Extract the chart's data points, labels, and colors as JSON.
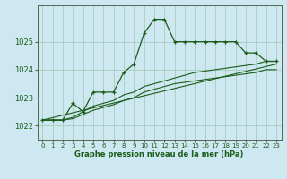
{
  "background_color": "#cde8f0",
  "grid_color": "#aaccbb",
  "line_color": "#1a5c1a",
  "xlabel": "Graphe pression niveau de la mer (hPa)",
  "xlim": [
    -0.5,
    23.5
  ],
  "ylim": [
    1021.5,
    1026.3
  ],
  "yticks": [
    1022,
    1023,
    1024,
    1025
  ],
  "xticks": [
    0,
    1,
    2,
    3,
    4,
    5,
    6,
    7,
    8,
    9,
    10,
    11,
    12,
    13,
    14,
    15,
    16,
    17,
    18,
    19,
    20,
    21,
    22,
    23
  ],
  "series": [
    {
      "x": [
        0,
        1,
        2,
        3,
        4,
        5,
        6,
        7,
        8,
        9,
        10,
        11,
        12,
        13,
        14,
        15,
        16,
        17,
        18,
        19,
        20,
        21,
        22,
        23
      ],
      "y": [
        1022.2,
        1022.2,
        1022.2,
        1022.8,
        1022.5,
        1023.2,
        1023.2,
        1023.2,
        1023.9,
        1024.2,
        1025.3,
        1025.8,
        1025.8,
        1025.0,
        1025.0,
        1025.0,
        1025.0,
        1025.0,
        1025.0,
        1025.0,
        1024.6,
        1024.6,
        1024.3,
        1024.3
      ],
      "has_markers": true
    },
    {
      "x": [
        0,
        1,
        2,
        3,
        4,
        5,
        6,
        7,
        8,
        9,
        10,
        11,
        12,
        13,
        14,
        15,
        16,
        17,
        18,
        19,
        20,
        21,
        22,
        23
      ],
      "y": [
        1022.2,
        1022.2,
        1022.2,
        1022.3,
        1022.5,
        1022.7,
        1022.8,
        1022.9,
        1023.1,
        1023.2,
        1023.4,
        1023.5,
        1023.6,
        1023.7,
        1023.8,
        1023.9,
        1023.95,
        1024.0,
        1024.05,
        1024.1,
        1024.15,
        1024.2,
        1024.3,
        1024.3
      ],
      "has_markers": false
    },
    {
      "x": [
        0,
        1,
        2,
        3,
        4,
        5,
        6,
        7,
        8,
        9,
        10,
        11,
        12,
        13,
        14,
        15,
        16,
        17,
        18,
        19,
        20,
        21,
        22,
        23
      ],
      "y": [
        1022.2,
        1022.2,
        1022.2,
        1022.25,
        1022.4,
        1022.55,
        1022.65,
        1022.75,
        1022.9,
        1023.0,
        1023.2,
        1023.3,
        1023.4,
        1023.5,
        1023.55,
        1023.6,
        1023.65,
        1023.7,
        1023.75,
        1023.8,
        1023.85,
        1023.9,
        1024.0,
        1024.0
      ],
      "has_markers": false
    },
    {
      "x": [
        0,
        23
      ],
      "y": [
        1022.2,
        1024.2
      ],
      "has_markers": false
    }
  ]
}
